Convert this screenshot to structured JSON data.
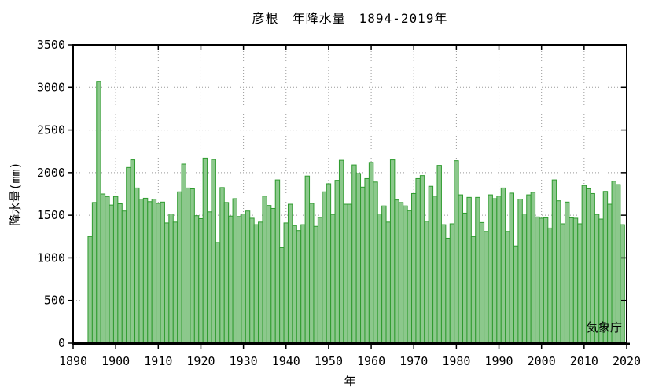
{
  "chart": {
    "title": "彦根　年降水量　1894-2019年",
    "y_axis_title": "降水量(mm)",
    "x_axis_title": "年",
    "source": "気象庁"
  },
  "chart_data": {
    "type": "bar",
    "title": "彦根　年降水量　1894-2019年",
    "xlabel": "年",
    "ylabel": "降水量(mm)",
    "xlim": [
      1890,
      2020
    ],
    "ylim": [
      0,
      3500
    ],
    "x_ticks": [
      1890,
      1900,
      1910,
      1920,
      1930,
      1940,
      1950,
      1960,
      1970,
      1980,
      1990,
      2000,
      2010,
      2020
    ],
    "y_ticks": [
      0,
      500,
      1000,
      1500,
      2000,
      2500,
      3000,
      3500
    ],
    "grid": true,
    "legend": "none",
    "bar_fill_color": "#8CC88C",
    "bar_edge_color": "#2E9B2E",
    "grid_color": "#999999",
    "axis_color": "#000000",
    "years": [
      1894,
      1895,
      1896,
      1897,
      1898,
      1899,
      1900,
      1901,
      1902,
      1903,
      1904,
      1905,
      1906,
      1907,
      1908,
      1909,
      1910,
      1911,
      1912,
      1913,
      1914,
      1915,
      1916,
      1917,
      1918,
      1919,
      1920,
      1921,
      1922,
      1923,
      1924,
      1925,
      1926,
      1927,
      1928,
      1929,
      1930,
      1931,
      1932,
      1933,
      1934,
      1935,
      1936,
      1937,
      1938,
      1939,
      1940,
      1941,
      1942,
      1943,
      1944,
      1945,
      1946,
      1947,
      1948,
      1949,
      1950,
      1951,
      1952,
      1953,
      1954,
      1955,
      1956,
      1957,
      1958,
      1959,
      1960,
      1961,
      1962,
      1963,
      1964,
      1965,
      1966,
      1967,
      1968,
      1969,
      1970,
      1971,
      1972,
      1973,
      1974,
      1975,
      1976,
      1977,
      1978,
      1979,
      1980,
      1981,
      1982,
      1983,
      1984,
      1985,
      1986,
      1987,
      1988,
      1989,
      1990,
      1991,
      1992,
      1993,
      1994,
      1995,
      1996,
      1997,
      1998,
      1999,
      2000,
      2001,
      2002,
      2003,
      2004,
      2005,
      2006,
      2007,
      2008,
      2009,
      2010,
      2011,
      2012,
      2013,
      2014,
      2015,
      2016,
      2017,
      2018,
      2019
    ],
    "values": [
      1250,
      1650,
      3070,
      1750,
      1720,
      1620,
      1720,
      1635,
      1550,
      2060,
      2150,
      1820,
      1690,
      1700,
      1660,
      1690,
      1640,
      1655,
      1410,
      1515,
      1420,
      1775,
      2100,
      1820,
      1810,
      1495,
      1460,
      2170,
      1540,
      2155,
      1180,
      1825,
      1650,
      1490,
      1695,
      1485,
      1515,
      1550,
      1465,
      1390,
      1420,
      1725,
      1615,
      1580,
      1915,
      1120,
      1410,
      1630,
      1380,
      1320,
      1390,
      1960,
      1640,
      1370,
      1475,
      1775,
      1870,
      1510,
      1910,
      2145,
      1630,
      1630,
      2090,
      1990,
      1830,
      1930,
      2120,
      1890,
      1515,
      1610,
      1420,
      2150,
      1680,
      1650,
      1610,
      1555,
      1755,
      1930,
      1965,
      1430,
      1840,
      1725,
      2085,
      1390,
      1230,
      1400,
      2140,
      1740,
      1525,
      1710,
      1250,
      1710,
      1415,
      1310,
      1740,
      1695,
      1725,
      1820,
      1310,
      1760,
      1140,
      1690,
      1515,
      1740,
      1770,
      1480,
      1465,
      1470,
      1350,
      1915,
      1670,
      1400,
      1655,
      1470,
      1465,
      1400,
      1850,
      1810,
      1755,
      1510,
      1455,
      1780,
      1630,
      1900,
      1860,
      1390
    ]
  }
}
